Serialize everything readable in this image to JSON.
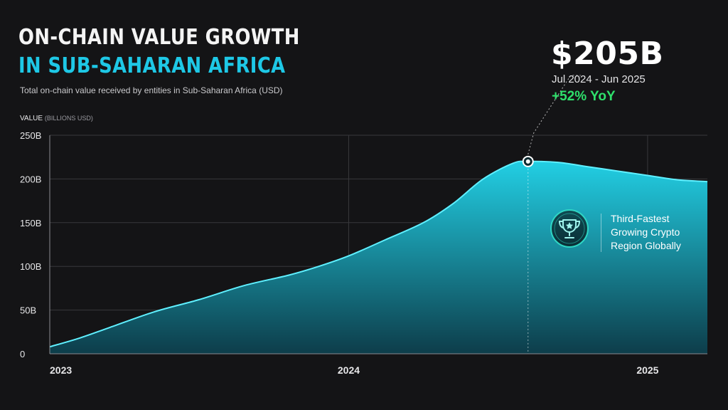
{
  "chart_data": {
    "type": "area",
    "title_line1": "ON-CHAIN VALUE GROWTH",
    "title_line2": "IN SUB-SAHARAN AFRICA",
    "subtitle": "Total on-chain value received by entities in Sub-Saharan Africa (USD)",
    "ylabel": "VALUE",
    "ylabel_unit": "(BILLIONS USD)",
    "ylim": [
      0,
      250
    ],
    "y_ticks": [
      0,
      50,
      100,
      150,
      200,
      250
    ],
    "y_tick_labels": [
      "0",
      "50B",
      "100B",
      "150B",
      "200B",
      "250B"
    ],
    "x_ticks": [
      2023,
      2024,
      2025
    ],
    "x_tick_labels": [
      "2023",
      "2024",
      "2025"
    ],
    "xlim": [
      2023.0,
      2025.2
    ],
    "grid": true,
    "series": [
      {
        "x": [
          2023.0,
          2023.1,
          2023.2,
          2023.35,
          2023.5,
          2023.65,
          2023.8,
          2023.9,
          2024.0,
          2024.12,
          2024.25,
          2024.35,
          2024.45,
          2024.55,
          2024.6,
          2024.7,
          2024.8,
          2024.9,
          2025.0,
          2025.1,
          2025.2
        ],
        "values": [
          8,
          18,
          30,
          48,
          62,
          78,
          90,
          100,
          112,
          130,
          150,
          172,
          200,
          218,
          220,
          219,
          214,
          209,
          204,
          199,
          197
        ]
      }
    ],
    "colors": {
      "area_top": "#22cfe4",
      "area_bottom": "#0d3d4a",
      "line": "#5ff0ff",
      "grid": "#38383c"
    },
    "annotation": {
      "value": "$205B",
      "period": "Jul 2024 - Jun 2025",
      "change": "+52% YoY",
      "change_color": "#2ee06b",
      "x": 2024.6,
      "y": 220
    },
    "badge": {
      "icon": "trophy-icon",
      "lines": [
        "Third-Fastest",
        "Growing Crypto",
        "Region Globally"
      ],
      "accent": "#2fd6c4"
    }
  }
}
